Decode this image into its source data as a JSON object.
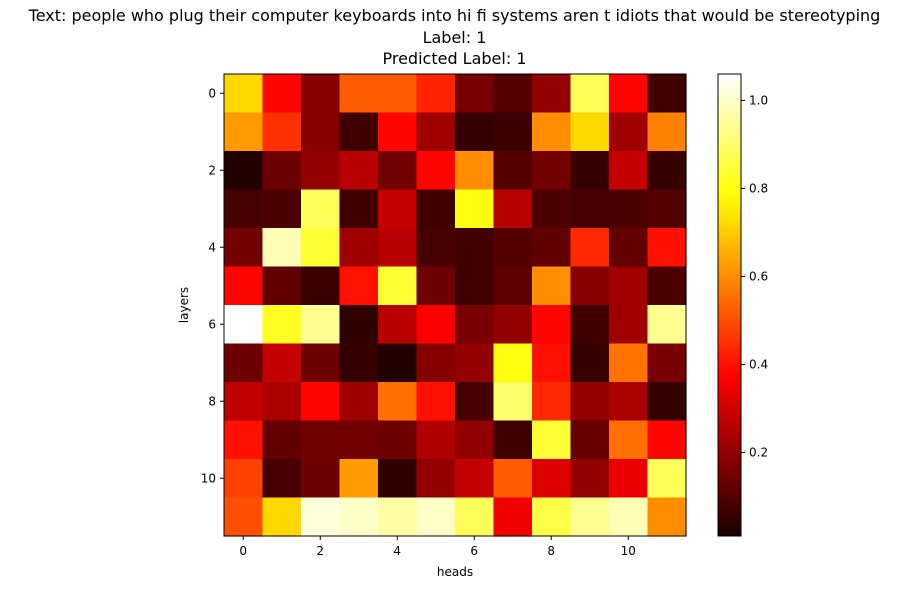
{
  "chart_data": {
    "type": "heatmap",
    "title_lines": [
      "Text: people who plug their computer keyboards into hi fi systems aren t idiots that would be stereotyping",
      "Label: 1",
      "Predicted Label: 1"
    ],
    "xlabel": "heads",
    "ylabel": "layers",
    "x_ticks": [
      0,
      2,
      4,
      6,
      8,
      10
    ],
    "y_ticks": [
      0,
      2,
      4,
      6,
      8,
      10
    ],
    "colorbar_ticks": [
      0.2,
      0.4,
      0.6,
      0.8,
      1.0
    ],
    "colorbar_range": [
      0.01,
      1.06
    ],
    "colormap": "hot",
    "values": [
      [
        0.72,
        0.38,
        0.18,
        0.52,
        0.52,
        0.43,
        0.16,
        0.1,
        0.2,
        0.88,
        0.38,
        0.07
      ],
      [
        0.62,
        0.45,
        0.18,
        0.07,
        0.38,
        0.22,
        0.05,
        0.06,
        0.6,
        0.72,
        0.22,
        0.58
      ],
      [
        0.02,
        0.14,
        0.2,
        0.26,
        0.15,
        0.38,
        0.6,
        0.1,
        0.15,
        0.05,
        0.28,
        0.05
      ],
      [
        0.08,
        0.09,
        0.88,
        0.07,
        0.28,
        0.07,
        0.8,
        0.26,
        0.09,
        0.08,
        0.09,
        0.1
      ],
      [
        0.15,
        0.98,
        0.84,
        0.22,
        0.26,
        0.08,
        0.07,
        0.1,
        0.12,
        0.44,
        0.12,
        0.4
      ],
      [
        0.38,
        0.12,
        0.06,
        0.4,
        0.84,
        0.14,
        0.07,
        0.11,
        0.6,
        0.18,
        0.22,
        0.09
      ],
      [
        1.06,
        0.82,
        0.94,
        0.04,
        0.26,
        0.37,
        0.16,
        0.2,
        0.38,
        0.07,
        0.22,
        0.94
      ],
      [
        0.14,
        0.28,
        0.14,
        0.05,
        0.02,
        0.18,
        0.2,
        0.8,
        0.4,
        0.05,
        0.56,
        0.16
      ],
      [
        0.27,
        0.24,
        0.38,
        0.22,
        0.55,
        0.4,
        0.08,
        0.9,
        0.44,
        0.2,
        0.24,
        0.05
      ],
      [
        0.4,
        0.12,
        0.15,
        0.15,
        0.14,
        0.25,
        0.2,
        0.07,
        0.84,
        0.13,
        0.55,
        0.38
      ],
      [
        0.48,
        0.08,
        0.14,
        0.62,
        0.04,
        0.2,
        0.28,
        0.52,
        0.32,
        0.2,
        0.34,
        0.88
      ],
      [
        0.5,
        0.72,
        1.02,
        1.0,
        0.96,
        1.0,
        0.88,
        0.35,
        0.86,
        0.94,
        0.98,
        0.6
      ]
    ]
  }
}
